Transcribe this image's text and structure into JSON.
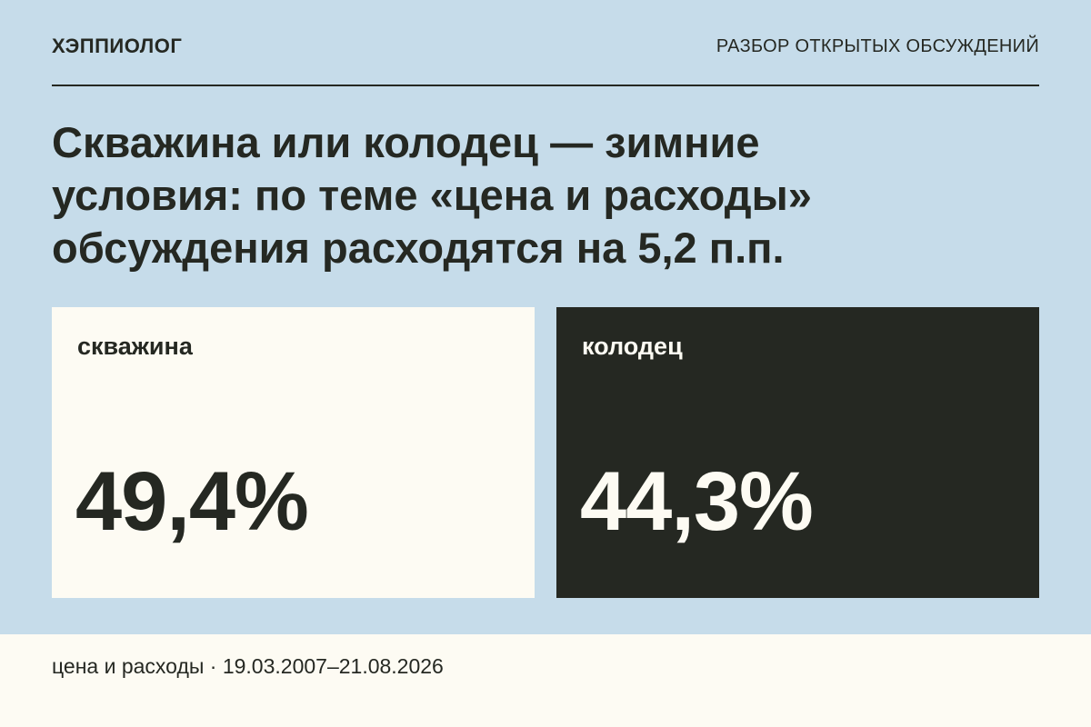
{
  "header": {
    "brand": "ХЭППИОЛОГ",
    "section": "РАЗБОР ОТКРЫТЫХ ОБСУЖДЕНИЙ"
  },
  "title": "Скважина или колодец — зимние условия: по теме «цена и расходы» обсуждения расходятся на 5,2 п.п.",
  "cards": [
    {
      "label": "скважина",
      "value": "49,4%"
    },
    {
      "label": "колодец",
      "value": "44,3%"
    }
  ],
  "footer": "цена и расходы · 19.03.2007–21.08.2026"
}
